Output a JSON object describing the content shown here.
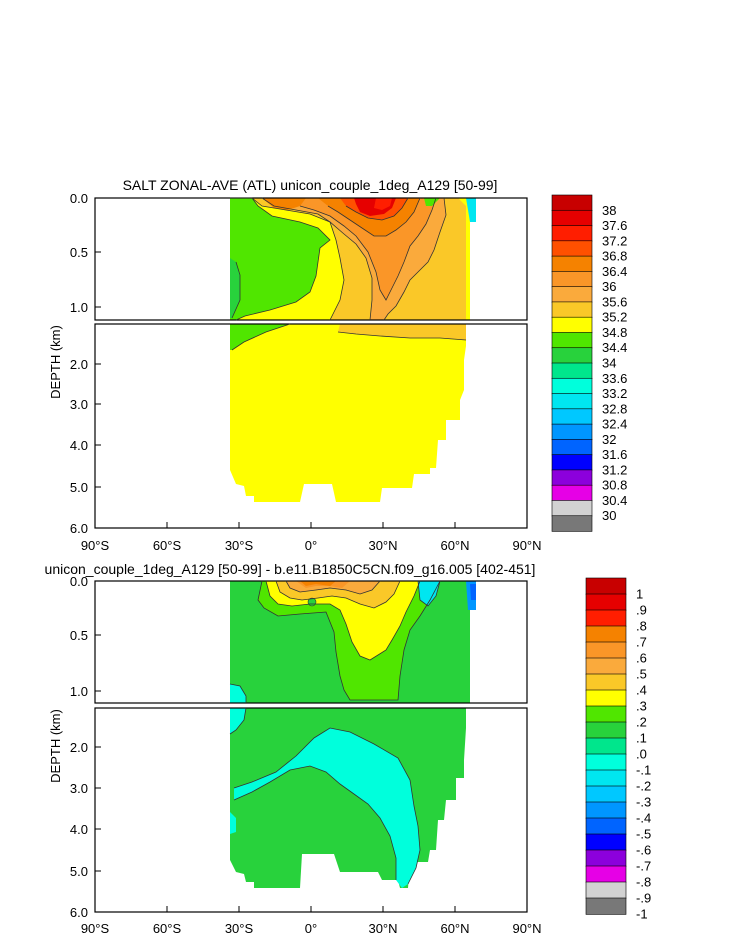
{
  "chart_data": [
    {
      "type": "contour",
      "title": "SALT ZONAL-AVE (ATL) unicon_couple_1deg_A129 [50-99]",
      "ylabel": "DEPTH (km)",
      "x_ticks": [
        "90°S",
        "60°S",
        "30°S",
        "0°",
        "30°N",
        "60°N",
        "90°N"
      ],
      "y_ticks_upper": [
        "0.0",
        "0.5",
        "1.0"
      ],
      "y_ticks_lower": [
        "2.0",
        "3.0",
        "4.0",
        "5.0",
        "6.0"
      ],
      "colorbar_levels": [
        "38",
        "37.6",
        "37.2",
        "36.8",
        "36.4",
        "36",
        "35.6",
        "35.2",
        "34.8",
        "34.4",
        "34",
        "33.6",
        "33.2",
        "32.8",
        "32.4",
        "32",
        "31.6",
        "31.2",
        "30.8",
        "30.4",
        "30"
      ],
      "colorbar_colors": [
        "#c80000",
        "#e60000",
        "#ff1e00",
        "#ff5000",
        "#f58200",
        "#fa9628",
        "#faaa3c",
        "#fac828",
        "#ffff00",
        "#50e600",
        "#28d23c",
        "#00e68c",
        "#00ffdc",
        "#00e6f0",
        "#00c8ff",
        "#0096ff",
        "#0064ff",
        "#0000ff",
        "#8c00dc",
        "#e600e6",
        "#d2d2d2",
        "#787878"
      ]
    },
    {
      "type": "contour",
      "title": "unicon_couple_1deg_A129 [50-99] - b.e11.B1850C5CN.f09_g16.005 [402-451]",
      "ylabel": "DEPTH (km)",
      "x_ticks": [
        "90°S",
        "60°S",
        "30°S",
        "0°",
        "30°N",
        "60°N",
        "90°N"
      ],
      "y_ticks_upper": [
        "0.0",
        "0.5",
        "1.0"
      ],
      "y_ticks_lower": [
        "2.0",
        "3.0",
        "4.0",
        "5.0",
        "6.0"
      ],
      "colorbar_levels": [
        "1",
        ".9",
        ".8",
        ".7",
        ".6",
        ".5",
        ".4",
        ".3",
        ".2",
        ".1",
        ".0",
        "-.1",
        "-.2",
        "-.3",
        "-.4",
        "-.5",
        "-.6",
        "-.7",
        "-.8",
        "-.9",
        "-1"
      ],
      "colorbar_colors": [
        "#c80000",
        "#e60000",
        "#ff1e00",
        "#f58200",
        "#fa9628",
        "#faaa3c",
        "#fac828",
        "#ffff00",
        "#50e600",
        "#28d23c",
        "#00e68c",
        "#00ffdc",
        "#00e6f0",
        "#00c8ff",
        "#0096ff",
        "#0064ff",
        "#0000ff",
        "#8c00dc",
        "#e600e6",
        "#d2d2d2",
        "#787878"
      ]
    }
  ]
}
